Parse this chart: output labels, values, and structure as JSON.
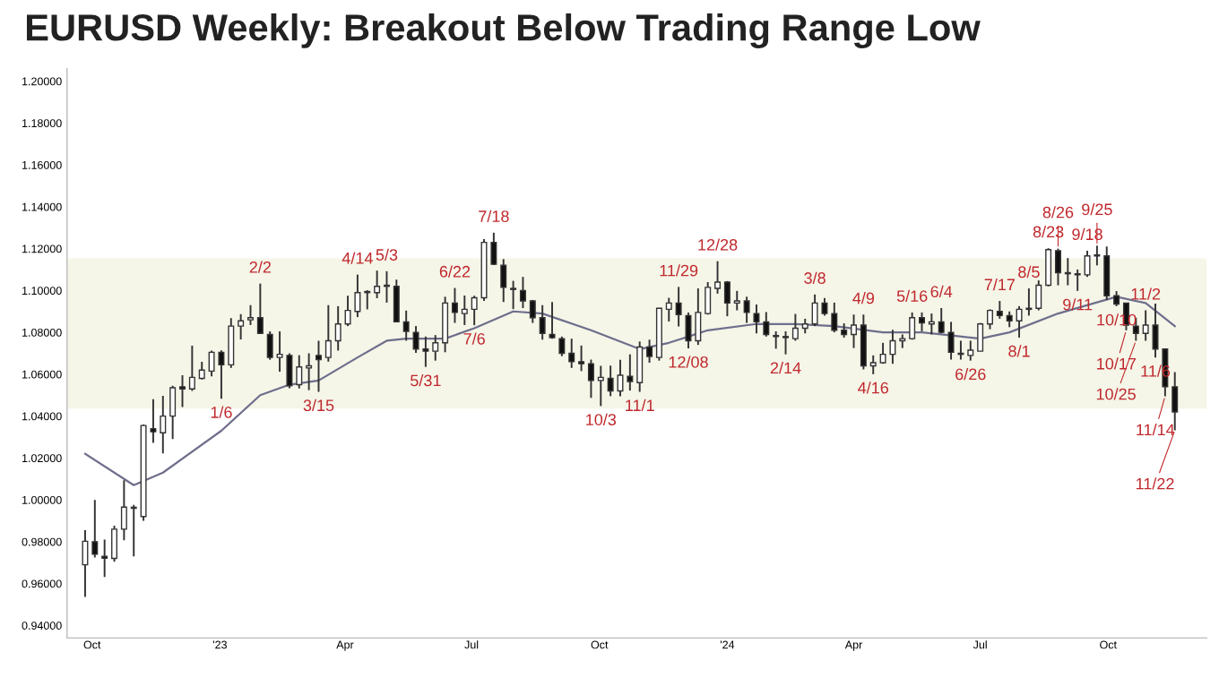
{
  "chart_data": {
    "type": "candlestick",
    "title": "EURUSD Weekly: Breakout Below Trading Range Low",
    "x": [
      "2022-09-26",
      "2022-10-03",
      "2022-10-10",
      "2022-10-17",
      "2022-10-24",
      "2022-10-31",
      "2022-11-07",
      "2022-11-14",
      "2022-11-21",
      "2022-11-28",
      "2022-12-05",
      "2022-12-12",
      "2022-12-19",
      "2022-12-26",
      "2023-01-02",
      "2023-01-09",
      "2023-01-16",
      "2023-01-23",
      "2023-01-30",
      "2023-02-06",
      "2023-02-13",
      "2023-02-20",
      "2023-02-27",
      "2023-03-06",
      "2023-03-13",
      "2023-03-20",
      "2023-03-27",
      "2023-04-03",
      "2023-04-10",
      "2023-04-17",
      "2023-04-24",
      "2023-05-01",
      "2023-05-08",
      "2023-05-15",
      "2023-05-22",
      "2023-05-29",
      "2023-06-05",
      "2023-06-12",
      "2023-06-19",
      "2023-06-26",
      "2023-07-03",
      "2023-07-10",
      "2023-07-17",
      "2023-07-24",
      "2023-07-31",
      "2023-08-07",
      "2023-08-14",
      "2023-08-21",
      "2023-08-28",
      "2023-09-04",
      "2023-09-11",
      "2023-09-18",
      "2023-09-25",
      "2023-10-02",
      "2023-10-09",
      "2023-10-16",
      "2023-10-23",
      "2023-10-30",
      "2023-11-06",
      "2023-11-13",
      "2023-11-20",
      "2023-11-27",
      "2023-12-04",
      "2023-12-11",
      "2023-12-18",
      "2023-12-25",
      "2024-01-01",
      "2024-01-08",
      "2024-01-15",
      "2024-01-22",
      "2024-01-29",
      "2024-02-05",
      "2024-02-12",
      "2024-02-19",
      "2024-02-26",
      "2024-03-04",
      "2024-03-11",
      "2024-03-18",
      "2024-03-25",
      "2024-04-01",
      "2024-04-08",
      "2024-04-15",
      "2024-04-22",
      "2024-04-29",
      "2024-05-06",
      "2024-05-13",
      "2024-05-20",
      "2024-05-27",
      "2024-06-03",
      "2024-06-10",
      "2024-06-17",
      "2024-06-24",
      "2024-07-01",
      "2024-07-08",
      "2024-07-15",
      "2024-07-22",
      "2024-07-29",
      "2024-08-05",
      "2024-08-12",
      "2024-08-19",
      "2024-08-26",
      "2024-09-02",
      "2024-09-09",
      "2024-09-16",
      "2024-09-23",
      "2024-09-30",
      "2024-10-07",
      "2024-10-14",
      "2024-10-21",
      "2024-10-28",
      "2024-11-04",
      "2024-11-11",
      "2024-11-18"
    ],
    "ohlc": [
      [
        0.969,
        0.9855,
        0.9536,
        0.9802
      ],
      [
        0.98,
        0.9999,
        0.9725,
        0.974
      ],
      [
        0.973,
        0.981,
        0.9632,
        0.9721
      ],
      [
        0.972,
        0.9876,
        0.9704,
        0.986
      ],
      [
        0.986,
        1.0094,
        0.9807,
        0.9965
      ],
      [
        0.996,
        0.9976,
        0.973,
        0.996
      ],
      [
        0.992,
        1.036,
        0.99,
        1.0355
      ],
      [
        1.034,
        1.0481,
        1.0272,
        1.0325
      ],
      [
        1.032,
        1.0497,
        1.0222,
        1.04
      ],
      [
        1.04,
        1.0545,
        1.029,
        1.0535
      ],
      [
        1.054,
        1.0595,
        1.0443,
        1.053
      ],
      [
        1.053,
        1.0736,
        1.052,
        1.0585
      ],
      [
        1.058,
        1.0659,
        1.0575,
        1.062
      ],
      [
        1.0615,
        1.0713,
        1.059,
        1.0705
      ],
      [
        1.0705,
        1.0714,
        1.0483,
        1.0645
      ],
      [
        1.0645,
        1.0868,
        1.063,
        1.083
      ],
      [
        1.083,
        1.0887,
        1.0766,
        1.0855
      ],
      [
        1.086,
        1.093,
        1.0835,
        1.087
      ],
      [
        1.087,
        1.1033,
        1.0793,
        1.0795
      ],
      [
        1.079,
        1.0805,
        1.0669,
        1.068
      ],
      [
        1.068,
        1.0805,
        1.0612,
        1.0695
      ],
      [
        1.069,
        1.07,
        1.0533,
        1.0545
      ],
      [
        1.055,
        1.0691,
        1.0532,
        1.0635
      ],
      [
        1.063,
        1.07,
        1.0524,
        1.064
      ],
      [
        1.069,
        1.076,
        1.0516,
        1.067
      ],
      [
        1.068,
        1.093,
        1.066,
        1.076
      ],
      [
        1.076,
        1.0925,
        1.0713,
        1.084
      ],
      [
        1.084,
        1.0975,
        1.083,
        1.0905
      ],
      [
        1.09,
        1.1076,
        1.0873,
        1.099
      ],
      [
        1.099,
        1.1001,
        1.091,
        1.0995
      ],
      [
        1.099,
        1.1095,
        1.0963,
        1.102
      ],
      [
        1.1025,
        1.1092,
        1.0942,
        1.102
      ],
      [
        1.102,
        1.1052,
        1.085,
        1.085
      ],
      [
        1.085,
        1.0904,
        1.076,
        1.0805
      ],
      [
        1.08,
        1.083,
        1.0702,
        1.072
      ],
      [
        1.072,
        1.078,
        1.0635,
        1.071
      ],
      [
        1.071,
        1.0787,
        1.0665,
        1.075
      ],
      [
        1.075,
        1.097,
        1.0705,
        1.094
      ],
      [
        1.094,
        1.1012,
        1.0845,
        1.0895
      ],
      [
        1.089,
        1.0976,
        1.0835,
        1.091
      ],
      [
        1.091,
        1.0975,
        1.0834,
        1.0965
      ],
      [
        1.0965,
        1.1245,
        1.095,
        1.123
      ],
      [
        1.123,
        1.1276,
        1.1122,
        1.1125
      ],
      [
        1.112,
        1.115,
        1.0945,
        1.1015
      ],
      [
        1.101,
        1.1046,
        1.0911,
        1.1005
      ],
      [
        1.1,
        1.1065,
        1.0916,
        1.095
      ],
      [
        1.095,
        1.0955,
        1.0845,
        1.087
      ],
      [
        1.087,
        1.093,
        1.0765,
        1.0795
      ],
      [
        1.079,
        1.0945,
        1.077,
        1.0775
      ],
      [
        1.077,
        1.078,
        1.0686,
        1.07
      ],
      [
        1.07,
        1.077,
        1.063,
        1.066
      ],
      [
        1.066,
        1.0737,
        1.0615,
        1.065
      ],
      [
        1.065,
        1.067,
        1.0487,
        1.057
      ],
      [
        1.057,
        1.064,
        1.0448,
        1.0585
      ],
      [
        1.058,
        1.0641,
        1.0495,
        1.052
      ],
      [
        1.052,
        1.0669,
        1.0495,
        1.0595
      ],
      [
        1.059,
        1.0695,
        1.0522,
        1.0565
      ],
      [
        1.056,
        1.0756,
        1.0516,
        1.073
      ],
      [
        1.073,
        1.0765,
        1.0655,
        1.0685
      ],
      [
        1.068,
        1.0917,
        1.0665,
        1.0915
      ],
      [
        1.091,
        1.0965,
        1.0852,
        1.094
      ],
      [
        1.094,
        1.1017,
        1.0828,
        1.0885
      ],
      [
        1.088,
        1.0895,
        1.0723,
        1.076
      ],
      [
        1.076,
        1.101,
        1.074,
        1.0895
      ],
      [
        1.089,
        1.104,
        1.0885,
        1.1015
      ],
      [
        1.101,
        1.114,
        1.0985,
        1.104
      ],
      [
        1.104,
        1.1045,
        1.0877,
        1.094
      ],
      [
        1.094,
        1.0998,
        1.0905,
        1.095
      ],
      [
        1.095,
        1.097,
        1.0845,
        1.0895
      ],
      [
        1.089,
        1.0933,
        1.0795,
        1.085
      ],
      [
        1.085,
        1.0897,
        1.078,
        1.079
      ],
      [
        1.078,
        1.0805,
        1.0722,
        1.0785
      ],
      [
        1.078,
        1.0805,
        1.0695,
        1.0775
      ],
      [
        1.077,
        1.0888,
        1.076,
        1.082
      ],
      [
        1.082,
        1.0865,
        1.0795,
        1.084
      ],
      [
        1.084,
        1.0981,
        1.083,
        1.094
      ],
      [
        1.094,
        1.0964,
        1.088,
        1.089
      ],
      [
        1.089,
        1.0942,
        1.08,
        1.081
      ],
      [
        1.081,
        1.0843,
        1.0775,
        1.079
      ],
      [
        1.079,
        1.0885,
        1.0725,
        1.0835
      ],
      [
        1.0835,
        1.0885,
        1.0623,
        1.064
      ],
      [
        1.064,
        1.069,
        1.06,
        1.0655
      ],
      [
        1.0655,
        1.075,
        1.065,
        1.0695
      ],
      [
        1.0695,
        1.0812,
        1.065,
        1.076
      ],
      [
        1.076,
        1.079,
        1.0725,
        1.077
      ],
      [
        1.077,
        1.0895,
        1.0765,
        1.087
      ],
      [
        1.087,
        1.0895,
        1.0805,
        1.0845
      ],
      [
        1.084,
        1.089,
        1.079,
        1.085
      ],
      [
        1.085,
        1.0916,
        1.0795,
        1.08
      ],
      [
        1.08,
        1.085,
        1.067,
        1.0705
      ],
      [
        1.07,
        1.076,
        1.067,
        1.0695
      ],
      [
        1.069,
        1.076,
        1.0665,
        1.0715
      ],
      [
        1.071,
        1.0845,
        1.071,
        1.084
      ],
      [
        1.084,
        1.091,
        1.0815,
        1.0905
      ],
      [
        1.09,
        1.095,
        1.0865,
        1.088
      ],
      [
        1.088,
        1.09,
        1.0825,
        1.0855
      ],
      [
        1.0855,
        1.0925,
        1.0775,
        1.091
      ],
      [
        1.091,
        1.101,
        1.088,
        1.0915
      ],
      [
        1.0915,
        1.1048,
        1.0905,
        1.1025
      ],
      [
        1.1025,
        1.1202,
        1.102,
        1.1195
      ],
      [
        1.119,
        1.12,
        1.1025,
        1.1085
      ],
      [
        1.108,
        1.1155,
        1.1025,
        1.1085
      ],
      [
        1.108,
        1.11,
        1.0998,
        1.1075
      ],
      [
        1.1075,
        1.119,
        1.1065,
        1.1165
      ],
      [
        1.1165,
        1.1214,
        1.112,
        1.117
      ],
      [
        1.1165,
        1.121,
        1.0955,
        1.0975
      ],
      [
        1.0975,
        1.0997,
        1.0925,
        1.0935
      ],
      [
        1.094,
        1.094,
        1.081,
        1.0835
      ],
      [
        1.083,
        1.087,
        1.076,
        1.0795
      ],
      [
        1.0795,
        1.0905,
        1.076,
        1.0835
      ],
      [
        1.0835,
        1.0937,
        1.068,
        1.072
      ],
      [
        1.072,
        1.0722,
        1.0495,
        1.054
      ],
      [
        1.054,
        1.061,
        1.0332,
        1.042
      ]
    ],
    "series": [
      {
        "type": "line",
        "color": "#6e6e8c",
        "x": [
          "2022-09-26",
          "2022-10-31",
          "2022-11-21",
          "2023-01-02",
          "2023-01-30",
          "2023-02-20",
          "2023-03-13",
          "2023-04-10",
          "2023-05-01",
          "2023-05-15",
          "2023-06-12",
          "2023-07-03",
          "2023-07-31",
          "2023-08-21",
          "2023-09-25",
          "2023-10-30",
          "2023-11-20",
          "2023-12-18",
          "2024-01-22",
          "2024-02-19",
          "2024-03-18",
          "2024-04-22",
          "2024-05-20",
          "2024-06-03",
          "2024-07-01",
          "2024-07-22",
          "2024-08-26",
          "2024-10-07",
          "2024-10-28",
          "2024-11-18"
        ],
        "values": [
          1.022,
          1.007,
          1.013,
          1.033,
          1.05,
          1.055,
          1.057,
          1.068,
          1.076,
          1.077,
          1.077,
          1.082,
          1.09,
          1.089,
          1.081,
          1.072,
          1.075,
          1.081,
          1.084,
          1.084,
          1.083,
          1.08,
          1.08,
          1.079,
          1.077,
          1.08,
          1.089,
          1.097,
          1.094,
          1.083
        ]
      }
    ],
    "bands": [
      {
        "axis": "y",
        "from": 1.0436,
        "to": 1.1153,
        "color": "#f5f5e8"
      }
    ],
    "annotations": [
      {
        "text": "1/6",
        "x": "2023-01-02",
        "y": 1.0483
      },
      {
        "text": "2/2",
        "x": "2023-01-30",
        "y": 1.1033
      },
      {
        "text": "3/15",
        "x": "2023-03-13",
        "y": 1.0516
      },
      {
        "text": "4/14",
        "x": "2023-04-10",
        "y": 1.1076
      },
      {
        "text": "5/3",
        "x": "2023-05-01",
        "y": 1.1092
      },
      {
        "text": "5/31",
        "x": "2023-05-29",
        "y": 1.0635
      },
      {
        "text": "6/22",
        "x": "2023-06-19",
        "y": 1.1012
      },
      {
        "text": "7/6",
        "x": "2023-07-03",
        "y": 1.0834
      },
      {
        "text": "7/18",
        "x": "2023-07-17",
        "y": 1.1276
      },
      {
        "text": "10/3",
        "x": "2023-10-02",
        "y": 1.0448
      },
      {
        "text": "11/1",
        "x": "2023-10-30",
        "y": 1.0516
      },
      {
        "text": "11/29",
        "x": "2023-11-27",
        "y": 1.1017
      },
      {
        "text": "12/08",
        "x": "2023-12-04",
        "y": 1.0723
      },
      {
        "text": "12/28",
        "x": "2023-12-25",
        "y": 1.114
      },
      {
        "text": "2/14",
        "x": "2024-02-12",
        "y": 1.0695
      },
      {
        "text": "3/8",
        "x": "2024-03-04",
        "y": 1.0981
      },
      {
        "text": "4/9",
        "x": "2024-04-08",
        "y": 1.0885
      },
      {
        "text": "4/16",
        "x": "2024-04-15",
        "y": 1.06
      },
      {
        "text": "5/16",
        "x": "2024-05-13",
        "y": 1.0895
      },
      {
        "text": "6/4",
        "x": "2024-06-03",
        "y": 1.0916
      },
      {
        "text": "6/26",
        "x": "2024-06-24",
        "y": 1.0665
      },
      {
        "text": "7/17",
        "x": "2024-07-15",
        "y": 1.095
      },
      {
        "text": "8/1",
        "x": "2024-07-29",
        "y": 1.0775
      },
      {
        "text": "8/5",
        "x": "2024-08-05",
        "y": 1.101
      },
      {
        "text": "8/23",
        "x": "2024-08-19",
        "y": 1.1202
      },
      {
        "text": "8/26",
        "x": "2024-08-26",
        "y": 1.12
      },
      {
        "text": "9/18",
        "x": "2024-09-16",
        "y": 1.119
      },
      {
        "text": "9/25",
        "x": "2024-09-23",
        "y": 1.1214
      },
      {
        "text": "9/11",
        "x": "2024-09-09",
        "y": 1.0998
      },
      {
        "text": "10/10",
        "x": "2024-10-07",
        "y": 1.0925
      },
      {
        "text": "11/2",
        "x": "2024-10-28",
        "y": 1.0905
      },
      {
        "text": "10/17",
        "x": "2024-10-14",
        "y": 1.081
      },
      {
        "text": "10/25",
        "x": "2024-10-21",
        "y": 1.076
      },
      {
        "text": "11/6",
        "x": "2024-11-04",
        "y": 1.068
      },
      {
        "text": "11/14",
        "x": "2024-11-11",
        "y": 1.0495
      },
      {
        "text": "11/22",
        "x": "2024-11-18",
        "y": 1.0332
      }
    ],
    "xlim": [
      "2022-09-13",
      "2024-12-11"
    ],
    "xticks": [
      {
        "value": "2022-10-01",
        "label": "Oct"
      },
      {
        "value": "2023-01-01",
        "label": "'23"
      },
      {
        "value": "2023-04-01",
        "label": "Apr"
      },
      {
        "value": "2023-07-01",
        "label": "Jul"
      },
      {
        "value": "2023-10-01",
        "label": "Oct"
      },
      {
        "value": "2024-01-01",
        "label": "'24"
      },
      {
        "value": "2024-04-01",
        "label": "Apr"
      },
      {
        "value": "2024-07-01",
        "label": "Jul"
      },
      {
        "value": "2024-10-01",
        "label": "Oct"
      }
    ],
    "ylim": [
      0.934,
      1.206
    ],
    "yticks": [
      {
        "value": 0.94,
        "label": "0.94000"
      },
      {
        "value": 0.96,
        "label": "0.96000"
      },
      {
        "value": 0.98,
        "label": "0.98000"
      },
      {
        "value": 1.0,
        "label": "1.00000"
      },
      {
        "value": 1.02,
        "label": "1.02000"
      },
      {
        "value": 1.04,
        "label": "1.04000"
      },
      {
        "value": 1.06,
        "label": "1.06000"
      },
      {
        "value": 1.08,
        "label": "1.08000"
      },
      {
        "value": 1.1,
        "label": "1.10000"
      },
      {
        "value": 1.12,
        "label": "1.12000"
      },
      {
        "value": 1.14,
        "label": "1.14000"
      },
      {
        "value": 1.16,
        "label": "1.16000"
      },
      {
        "value": 1.18,
        "label": "1.18000"
      },
      {
        "value": 1.2,
        "label": "1.20000"
      }
    ],
    "grid": false,
    "legend": false
  }
}
